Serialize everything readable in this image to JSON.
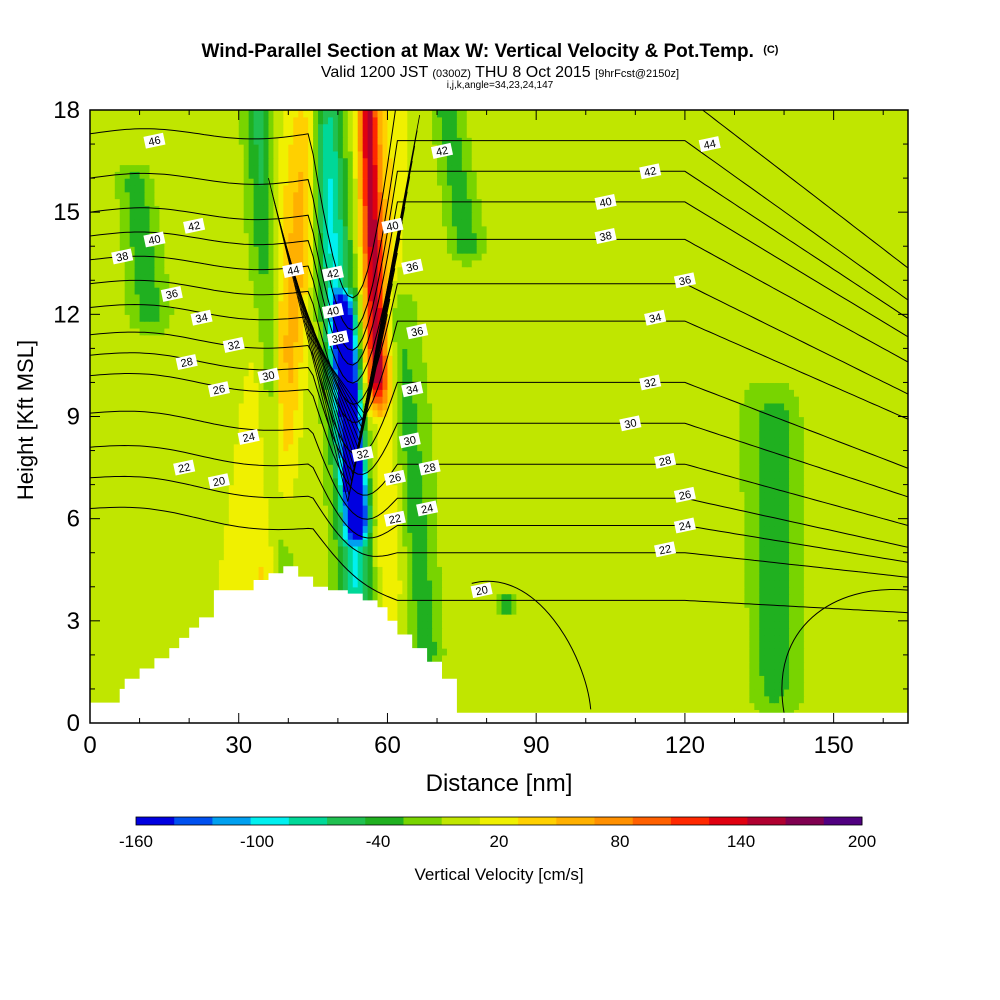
{
  "chart_data": {
    "type": "heatmap",
    "title": {
      "main": "Wind-Parallel Section at Max W: Vertical Velocity & Pot.Temp.",
      "main_suffix": "(C)",
      "line2_a": "Valid 1200 JST",
      "line2_b": "(0300Z)",
      "line2_c": "THU 8 Oct 2015",
      "line2_d": "[9hrFcst@2150z]",
      "line3": "i,j,k,angle=34,23,24,147"
    },
    "xlabel": "Distance [nm]",
    "ylabel": "Height [Kft MSL]",
    "xlim": [
      0,
      165
    ],
    "ylim": [
      0,
      18
    ],
    "xticks": [
      "0",
      "30",
      "60",
      "90",
      "120",
      "150"
    ],
    "xtick_values": [
      0,
      30,
      60,
      90,
      120,
      150
    ],
    "yticks": [
      "0",
      "3",
      "6",
      "9",
      "12",
      "15",
      "18"
    ],
    "ytick_values": [
      0,
      3,
      6,
      9,
      12,
      15,
      18
    ],
    "colorbar": {
      "label": "Vertical Velocity [cm/s]",
      "min": -160,
      "max": 200,
      "step": 20,
      "tick_labels": [
        "-160",
        "-100",
        "-40",
        "20",
        "80",
        "140",
        "200"
      ],
      "tick_values": [
        -160,
        -100,
        -40,
        20,
        80,
        140,
        200
      ],
      "colors": [
        "#0000e0",
        "#0050f0",
        "#00a0f0",
        "#00f0f0",
        "#00d898",
        "#20c050",
        "#20b020",
        "#78d400",
        "#c0e600",
        "#f0f000",
        "#ffd000",
        "#ffb000",
        "#ff9000",
        "#ff6000",
        "#ff2800",
        "#e00010",
        "#b00030",
        "#800050",
        "#500080"
      ]
    },
    "terrain_profile": {
      "x": [
        0,
        6,
        6,
        7,
        7,
        10,
        10,
        13,
        13,
        16,
        16,
        18,
        18,
        20,
        20,
        22,
        22,
        25,
        25,
        33,
        33,
        36,
        36,
        39,
        39,
        42,
        42,
        45,
        45,
        48,
        48,
        52,
        52,
        55,
        55,
        58,
        58,
        60,
        60,
        62,
        62,
        65,
        65,
        68,
        68,
        71,
        71,
        74,
        74,
        165
      ],
      "y": [
        0.6,
        0.6,
        1.0,
        1.0,
        1.3,
        1.3,
        1.6,
        1.6,
        1.9,
        1.9,
        2.2,
        2.2,
        2.5,
        2.5,
        2.8,
        2.8,
        3.1,
        3.1,
        3.9,
        3.9,
        4.2,
        4.2,
        4.4,
        4.4,
        4.6,
        4.6,
        4.3,
        4.3,
        4.0,
        4.0,
        3.9,
        3.9,
        3.8,
        3.8,
        3.6,
        3.6,
        3.4,
        3.4,
        3.0,
        3.0,
        2.6,
        2.6,
        2.2,
        2.2,
        1.8,
        1.8,
        1.3,
        1.3,
        0.3,
        0.3
      ]
    },
    "velocity_features": [
      {
        "center_x": [
          9,
          12
        ],
        "center_y": [
          16,
          12
        ],
        "width": 3.5,
        "value": -30
      },
      {
        "center_x": [
          42,
          26
        ],
        "center_y": [
          18,
          0
        ],
        "width": 5,
        "value": 40
      },
      {
        "center_x": [
          45,
          36
        ],
        "center_y": [
          18,
          4
        ],
        "width": 3.5,
        "value": 60
      },
      {
        "center_x": [
          34,
          38
        ],
        "center_y": [
          18,
          4
        ],
        "width": 3,
        "value": -40
      },
      {
        "center_x": [
          47,
          54
        ],
        "center_y": [
          18,
          4
        ],
        "width": 4,
        "value": -80
      },
      {
        "center_x": [
          51,
          54
        ],
        "center_y": [
          12,
          6
        ],
        "width": 2.5,
        "value": -160
      },
      {
        "center_x": [
          56,
          58
        ],
        "center_y": [
          18,
          10
        ],
        "width": 2.5,
        "value": 160
      },
      {
        "center_x": [
          60,
          60
        ],
        "center_y": [
          18,
          4
        ],
        "width": 4.5,
        "value": 40
      },
      {
        "center_x": [
          62,
          68
        ],
        "center_y": [
          12,
          2
        ],
        "width": 3.5,
        "value": -30
      },
      {
        "center_x": [
          72,
          76
        ],
        "center_y": [
          18,
          14
        ],
        "width": 3.5,
        "value": -30
      },
      {
        "center_x": [
          115,
          118
        ],
        "center_y": [
          9,
          1
        ],
        "width": 9,
        "value": 10
      },
      {
        "center_x": [
          150,
          150
        ],
        "center_y": [
          13,
          1
        ],
        "width": 13,
        "value": 10
      },
      {
        "center_x": [
          138,
          138
        ],
        "center_y": [
          9,
          1
        ],
        "width": 5,
        "value": -30
      },
      {
        "center_x": [
          100,
          110
        ],
        "center_y": [
          12,
          9
        ],
        "width": 9,
        "value": 10
      },
      {
        "center_x": [
          10,
          14
        ],
        "center_y": [
          4,
          1
        ],
        "width": 5,
        "value": 20
      },
      {
        "center_x": [
          84,
          84
        ],
        "center_y": [
          3.8,
          3.2
        ],
        "width": 2,
        "value": -40
      }
    ],
    "potential_temperature_contours": {
      "levels": [
        20,
        22,
        24,
        26,
        28,
        30,
        32,
        34,
        36,
        38,
        40,
        42,
        44,
        46
      ],
      "labels": [
        {
          "text": "46",
          "x": 13,
          "y": 17.1
        },
        {
          "text": "42",
          "x": 21,
          "y": 14.6
        },
        {
          "text": "40",
          "x": 13,
          "y": 14.2
        },
        {
          "text": "38",
          "x": 6.5,
          "y": 13.7
        },
        {
          "text": "36",
          "x": 16.5,
          "y": 12.6
        },
        {
          "text": "34",
          "x": 22.5,
          "y": 11.9
        },
        {
          "text": "32",
          "x": 29,
          "y": 11.1
        },
        {
          "text": "28",
          "x": 19.5,
          "y": 10.6
        },
        {
          "text": "30",
          "x": 36,
          "y": 10.2
        },
        {
          "text": "26",
          "x": 26,
          "y": 9.8
        },
        {
          "text": "24",
          "x": 32,
          "y": 8.4
        },
        {
          "text": "22",
          "x": 19,
          "y": 7.5
        },
        {
          "text": "20",
          "x": 26,
          "y": 7.1
        },
        {
          "text": "44",
          "x": 41,
          "y": 13.3
        },
        {
          "text": "42",
          "x": 49,
          "y": 13.2
        },
        {
          "text": "40",
          "x": 49,
          "y": 12.1
        },
        {
          "text": "38",
          "x": 50,
          "y": 11.3
        },
        {
          "text": "32",
          "x": 55,
          "y": 7.9
        },
        {
          "text": "26",
          "x": 61.5,
          "y": 7.2
        },
        {
          "text": "22",
          "x": 61.5,
          "y": 6.0
        },
        {
          "text": "24",
          "x": 68,
          "y": 6.3
        },
        {
          "text": "28",
          "x": 68.5,
          "y": 7.5
        },
        {
          "text": "30",
          "x": 64.5,
          "y": 8.3
        },
        {
          "text": "34",
          "x": 65,
          "y": 9.8
        },
        {
          "text": "36",
          "x": 66,
          "y": 11.5
        },
        {
          "text": "36",
          "x": 65,
          "y": 13.4
        },
        {
          "text": "40",
          "x": 61,
          "y": 14.6
        },
        {
          "text": "42",
          "x": 71,
          "y": 16.8
        },
        {
          "text": "44",
          "x": 125,
          "y": 17.0
        },
        {
          "text": "42",
          "x": 113,
          "y": 16.2
        },
        {
          "text": "40",
          "x": 104,
          "y": 15.3
        },
        {
          "text": "38",
          "x": 104,
          "y": 14.3
        },
        {
          "text": "36",
          "x": 120,
          "y": 13.0
        },
        {
          "text": "34",
          "x": 114,
          "y": 11.9
        },
        {
          "text": "32",
          "x": 113,
          "y": 10.0
        },
        {
          "text": "30",
          "x": 109,
          "y": 8.8
        },
        {
          "text": "28",
          "x": 116,
          "y": 7.7
        },
        {
          "text": "26",
          "x": 120,
          "y": 6.7
        },
        {
          "text": "24",
          "x": 120,
          "y": 5.8
        },
        {
          "text": "22",
          "x": 116,
          "y": 5.1
        },
        {
          "text": "20",
          "x": 79,
          "y": 3.9
        }
      ]
    }
  }
}
